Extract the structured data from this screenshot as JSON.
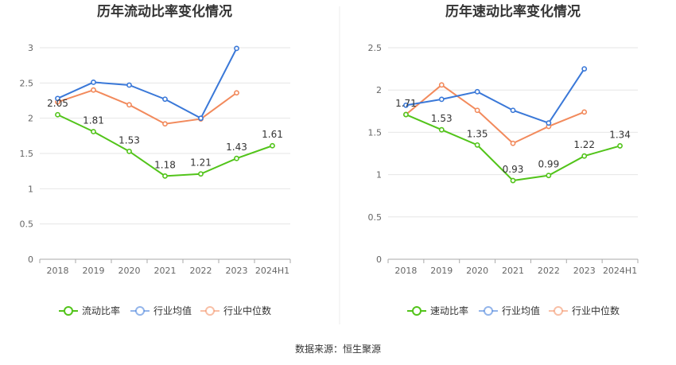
{
  "charts": [
    {
      "title": "历年流动比率变化情况",
      "categories": [
        "2018",
        "2019",
        "2020",
        "2021",
        "2022",
        "2023",
        "2024H1"
      ],
      "ylim": [
        0,
        3
      ],
      "yticks": [
        "0",
        "0.5",
        "1",
        "1.5",
        "2",
        "2.5",
        "3"
      ],
      "series": [
        {
          "name": "流动比率",
          "color": "#52c41a",
          "values": [
            2.05,
            1.81,
            1.53,
            1.18,
            1.21,
            1.43,
            1.61
          ],
          "labels": [
            "2.05",
            "1.81",
            "1.53",
            "1.18",
            "1.21",
            "1.43",
            "1.61"
          ]
        },
        {
          "name": "行业均值",
          "color": "#3a78d8",
          "values": [
            2.28,
            2.51,
            2.47,
            2.27,
            2.0,
            2.99,
            null
          ]
        },
        {
          "name": "行业中位数",
          "color": "#f28a5c",
          "values": [
            2.23,
            2.4,
            2.19,
            1.92,
            1.99,
            2.36,
            null
          ]
        }
      ]
    },
    {
      "title": "历年速动比率变化情况",
      "categories": [
        "2018",
        "2019",
        "2020",
        "2021",
        "2022",
        "2023",
        "2024H1"
      ],
      "ylim": [
        0,
        2.5
      ],
      "yticks": [
        "0",
        "0.5",
        "1",
        "1.5",
        "2",
        "2.5"
      ],
      "series": [
        {
          "name": "速动比率",
          "color": "#52c41a",
          "values": [
            1.71,
            1.53,
            1.35,
            0.93,
            0.99,
            1.22,
            1.34
          ],
          "labels": [
            "1.71",
            "1.53",
            "1.35",
            "0.93",
            "0.99",
            "1.22",
            "1.34"
          ]
        },
        {
          "name": "行业均值",
          "color": "#3a78d8",
          "values": [
            1.82,
            1.89,
            1.98,
            1.76,
            1.61,
            2.25,
            null
          ]
        },
        {
          "name": "行业中位数",
          "color": "#f28a5c",
          "values": [
            1.71,
            2.06,
            1.76,
            1.37,
            1.57,
            1.74,
            null
          ]
        }
      ]
    }
  ],
  "chart_data": [
    {
      "type": "line",
      "title": "历年流动比率变化情况",
      "x": [
        "2018",
        "2019",
        "2020",
        "2021",
        "2022",
        "2023",
        "2024H1"
      ],
      "ylim": [
        0,
        3
      ],
      "grid": true,
      "legend": "bottom",
      "series": [
        {
          "name": "流动比率",
          "values": [
            2.05,
            1.81,
            1.53,
            1.18,
            1.21,
            1.43,
            1.61
          ]
        },
        {
          "name": "行业均值",
          "values": [
            2.28,
            2.51,
            2.47,
            2.27,
            2.0,
            2.99,
            null
          ]
        },
        {
          "name": "行业中位数",
          "values": [
            2.23,
            2.4,
            2.19,
            1.92,
            1.99,
            2.36,
            null
          ]
        }
      ]
    },
    {
      "type": "line",
      "title": "历年速动比率变化情况",
      "x": [
        "2018",
        "2019",
        "2020",
        "2021",
        "2022",
        "2023",
        "2024H1"
      ],
      "ylim": [
        0,
        2.5
      ],
      "grid": true,
      "legend": "bottom",
      "series": [
        {
          "name": "速动比率",
          "values": [
            1.71,
            1.53,
            1.35,
            0.93,
            0.99,
            1.22,
            1.34
          ]
        },
        {
          "name": "行业均值",
          "values": [
            1.82,
            1.89,
            1.98,
            1.76,
            1.61,
            2.25,
            null
          ]
        },
        {
          "name": "行业中位数",
          "values": [
            1.71,
            2.06,
            1.76,
            1.37,
            1.57,
            1.74,
            null
          ]
        }
      ]
    }
  ],
  "source": "数据来源：恒生聚源"
}
